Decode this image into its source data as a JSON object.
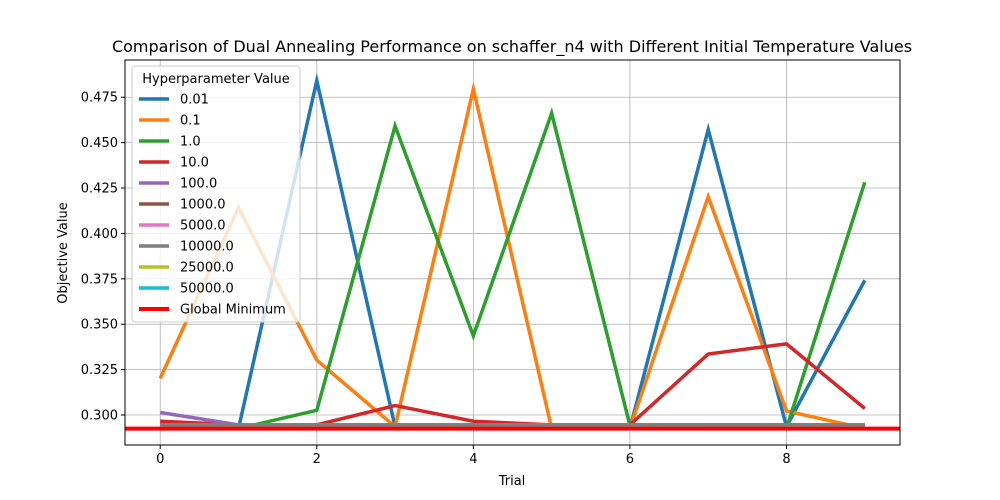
{
  "chart_data": {
    "type": "line",
    "title": "Comparison of Dual Annealing Performance on schaffer_n4 with Different Initial Temperature Values",
    "xlabel": "Trial",
    "ylabel": "Objective Value",
    "xlim": [
      -0.45,
      9.45
    ],
    "ylim": [
      0.2835,
      0.4955
    ],
    "xticks": [
      0,
      2,
      4,
      6,
      8
    ],
    "yticks": [
      0.3,
      0.325,
      0.35,
      0.375,
      0.4,
      0.425,
      0.45,
      0.475
    ],
    "ytick_labels": [
      "0.300",
      "0.325",
      "0.350",
      "0.375",
      "0.400",
      "0.425",
      "0.450",
      "0.475"
    ],
    "grid": true,
    "legend_title": "Hyperparameter Value",
    "legend_position": "top-left",
    "x": [
      0,
      1,
      2,
      3,
      4,
      5,
      6,
      7,
      8,
      9
    ],
    "series": [
      {
        "name": "0.01",
        "color": "#1f77b4",
        "values": [
          0.2926,
          0.2926,
          0.4842,
          0.2936,
          0.2926,
          0.2926,
          0.2926,
          0.4572,
          0.2936,
          0.3742
        ]
      },
      {
        "name": "0.1",
        "color": "#ff7f0e",
        "values": [
          0.3202,
          0.4142,
          0.3302,
          0.2936,
          0.4796,
          0.2926,
          0.2926,
          0.4202,
          0.3022,
          0.2926
        ]
      },
      {
        "name": "1.0",
        "color": "#2ca02c",
        "values": [
          0.2926,
          0.2926,
          0.3026,
          0.4592,
          0.3436,
          0.4662,
          0.2942,
          0.2926,
          0.2926,
          0.4282
        ]
      },
      {
        "name": "10.0",
        "color": "#d62728",
        "values": [
          0.2966,
          0.2946,
          0.2946,
          0.3052,
          0.2966,
          0.2946,
          0.2946,
          0.3336,
          0.3392,
          0.3036
        ]
      },
      {
        "name": "100.0",
        "color": "#9467bd",
        "values": [
          0.3014,
          0.2946,
          0.2946,
          0.2946,
          0.2946,
          0.2946,
          0.2946,
          0.2946,
          0.2946,
          0.2946
        ]
      },
      {
        "name": "1000.0",
        "color": "#8c564b",
        "values": [
          0.2946,
          0.2946,
          0.2946,
          0.2946,
          0.2946,
          0.2946,
          0.2946,
          0.2946,
          0.2946,
          0.2946
        ]
      },
      {
        "name": "5000.0",
        "color": "#e377c2",
        "values": [
          0.2946,
          0.2946,
          0.2946,
          0.2946,
          0.2946,
          0.2946,
          0.2946,
          0.2946,
          0.2946,
          0.2946
        ]
      },
      {
        "name": "10000.0",
        "color": "#7f7f7f",
        "values": [
          0.2946,
          0.2946,
          0.2946,
          0.2946,
          0.2946,
          0.2946,
          0.2946,
          0.2946,
          0.2946,
          0.2946
        ]
      },
      {
        "name": "25000.0",
        "color": "#bcbd22",
        "values": [
          0.2926,
          0.2926,
          0.2926,
          0.2926,
          0.2926,
          0.2926,
          0.2926,
          0.2926,
          0.2926,
          0.2926
        ]
      },
      {
        "name": "50000.0",
        "color": "#17becf",
        "values": [
          0.2926,
          0.2926,
          0.2926,
          0.2926,
          0.2926,
          0.2926,
          0.2926,
          0.2926,
          0.2926,
          0.2926
        ]
      }
    ],
    "reference_line": {
      "name": "Global Minimum",
      "color": "#ff0000",
      "value": 0.2925
    }
  }
}
